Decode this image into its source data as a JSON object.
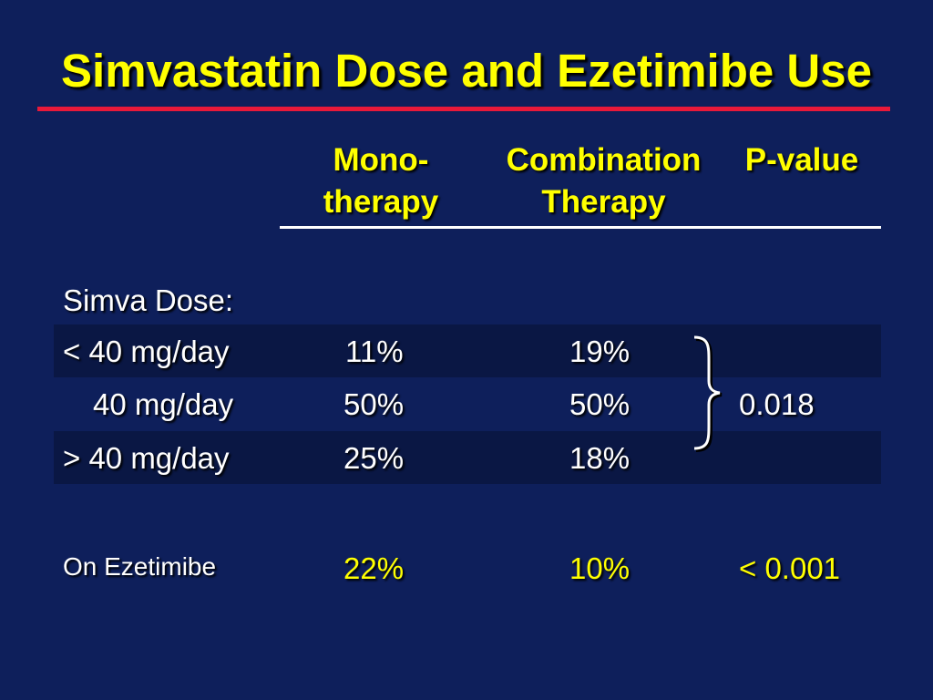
{
  "slide": {
    "title": "Simvastatin Dose and Ezetimibe Use",
    "colors": {
      "background": "#0e1f5b",
      "band": "#0a1744",
      "title": "#ffff00",
      "accent_rule": "#e8193a",
      "text": "#ffffff"
    }
  },
  "table": {
    "headers": {
      "mono": [
        "Mono-",
        "therapy"
      ],
      "combination": [
        "Combination",
        "Therapy"
      ],
      "pvalue": "P-value"
    },
    "section_label": "Simva Dose:",
    "rows": [
      {
        "label": "< 40 mg/day",
        "mono": "11%",
        "combination": "19%"
      },
      {
        "label": "40 mg/day",
        "mono": "50%",
        "combination": "50%"
      },
      {
        "label": "> 40 mg/day",
        "mono": "25%",
        "combination": "18%"
      }
    ],
    "dose_pvalue": "0.018",
    "ezetimibe": {
      "label": "On Ezetimibe",
      "mono": "22%",
      "combination": "10%",
      "pvalue": "< 0.001"
    }
  }
}
